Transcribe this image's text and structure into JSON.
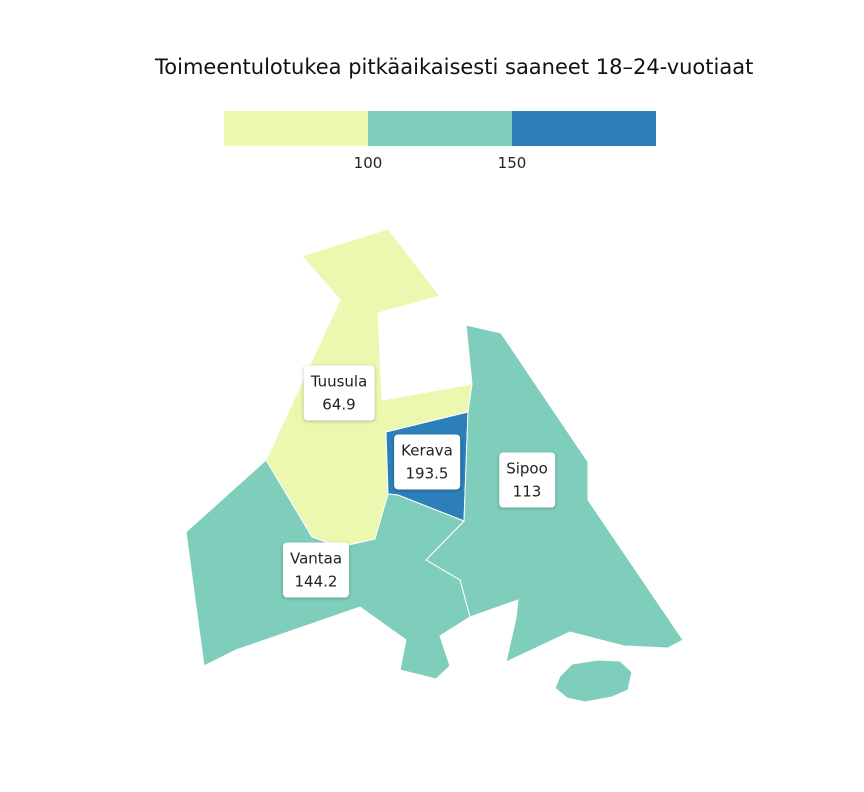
{
  "title": "Toimeentulotukea pitkäaikaisesti saaneet 18–24-vuotiaat",
  "legend": {
    "colors": [
      "#ecf8b0",
      "#7fcdbb",
      "#2c7fb8"
    ],
    "ticks": [
      "100",
      "150"
    ]
  },
  "regions": [
    {
      "name": "Tuusula",
      "value": "64.9",
      "color": "#ecf8b0"
    },
    {
      "name": "Kerava",
      "value": "193.5",
      "color": "#2c7fb8"
    },
    {
      "name": "Sipoo",
      "value": "113",
      "color": "#7fcdbb"
    },
    {
      "name": "Vantaa",
      "value": "144.2",
      "color": "#7fcdbb"
    }
  ]
}
